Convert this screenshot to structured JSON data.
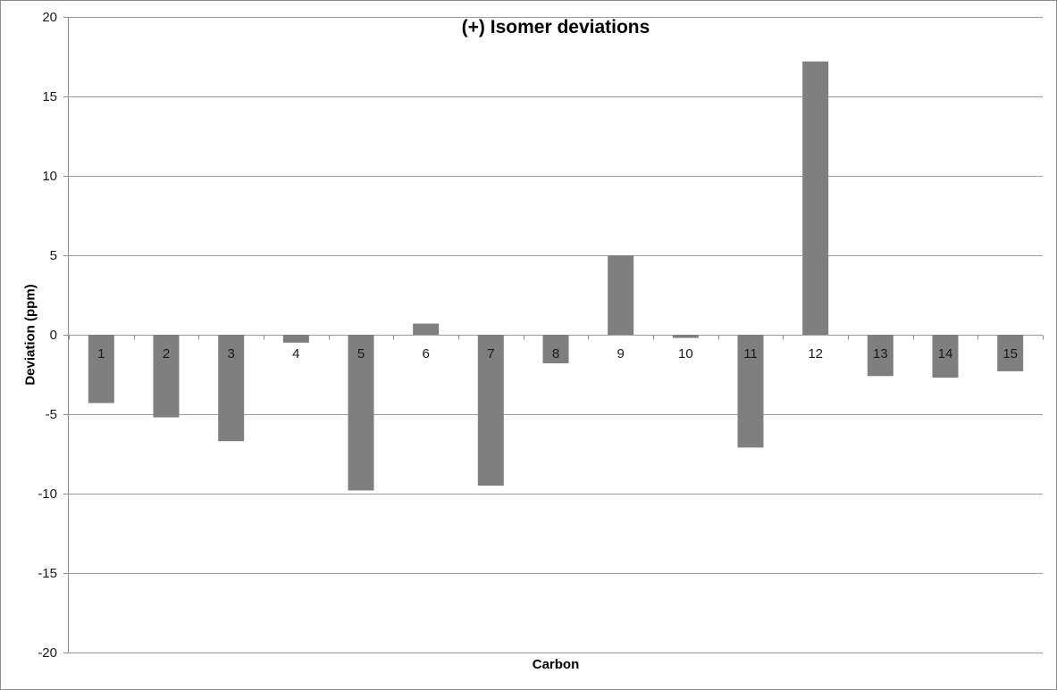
{
  "chart_data": {
    "type": "bar",
    "title": "(+) Isomer deviations",
    "xlabel": "Carbon",
    "ylabel": "Deviation (ppm)",
    "categories": [
      "1",
      "2",
      "3",
      "4",
      "5",
      "6",
      "7",
      "8",
      "9",
      "10",
      "11",
      "12",
      "13",
      "14",
      "15"
    ],
    "values": [
      -4.3,
      -5.2,
      -6.7,
      -0.5,
      -9.8,
      0.7,
      -9.5,
      -1.8,
      5.0,
      -0.2,
      -7.1,
      17.2,
      -2.6,
      -2.7,
      -2.3
    ],
    "ylim": [
      -20,
      20
    ],
    "ytick_step": 5,
    "ytick_labels": [
      "20",
      "15",
      "10",
      "5",
      "0",
      "-5",
      "-10",
      "-15",
      "-20"
    ],
    "grid": true,
    "legend": false,
    "bar_color": "#7f7f7f",
    "text_color": "#1a1a1a",
    "gridline_color": "#9d9d9d",
    "axis_color": "#8c8c8c",
    "background_color": "#ffffff",
    "border_color": "#8c8c8c"
  }
}
